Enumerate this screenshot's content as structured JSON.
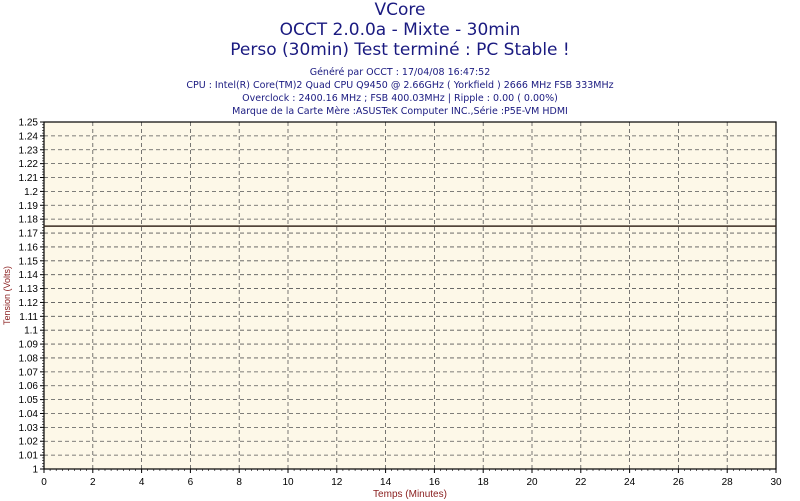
{
  "chart_data": {
    "type": "line",
    "title": "VCore",
    "subtitle_lines": [
      "OCCT 2.0.0a - Mixte - 30min",
      "Perso (30min) Test terminé : PC Stable !"
    ],
    "info_lines": [
      "Généré par OCCT : 17/04/08 16:47:52",
      "CPU : Intel(R) Core(TM)2 Quad CPU Q9450 @ 2.66GHz ( Yorkfield ) 2666 MHz FSB 333MHz",
      "Overclock : 2400.16 MHz ; FSB 400.03MHz | Ripple : 0.00 ( 0.00%)",
      "Marque de la Carte Mère :ASUSTeK Computer INC.,Série :P5E-VM HDMI"
    ],
    "xlabel": "Temps (Minutes)",
    "ylabel": "Tension (Volts)",
    "xlim": [
      0,
      30
    ],
    "ylim": [
      1,
      1.25
    ],
    "xticks": [
      0,
      2,
      4,
      6,
      8,
      10,
      12,
      14,
      16,
      18,
      20,
      22,
      24,
      26,
      28,
      30
    ],
    "yticks": [
      "1",
      "1.01",
      "1.02",
      "1.03",
      "1.04",
      "1.05",
      "1.06",
      "1.07",
      "1.08",
      "1.09",
      "1.1",
      "1.11",
      "1.12",
      "1.13",
      "1.14",
      "1.15",
      "1.16",
      "1.17",
      "1.18",
      "1.19",
      "1.2",
      "1.21",
      "1.22",
      "1.23",
      "1.24",
      "1.25"
    ],
    "grid": true,
    "series": [
      {
        "x": [
          0,
          30
        ],
        "y": [
          1.175,
          1.175
        ]
      }
    ],
    "colors": {
      "title": "#1a1a80",
      "plot_bg": "#fdf8e8",
      "line": "#3a2a20",
      "axis_label": "#8b2020"
    }
  }
}
